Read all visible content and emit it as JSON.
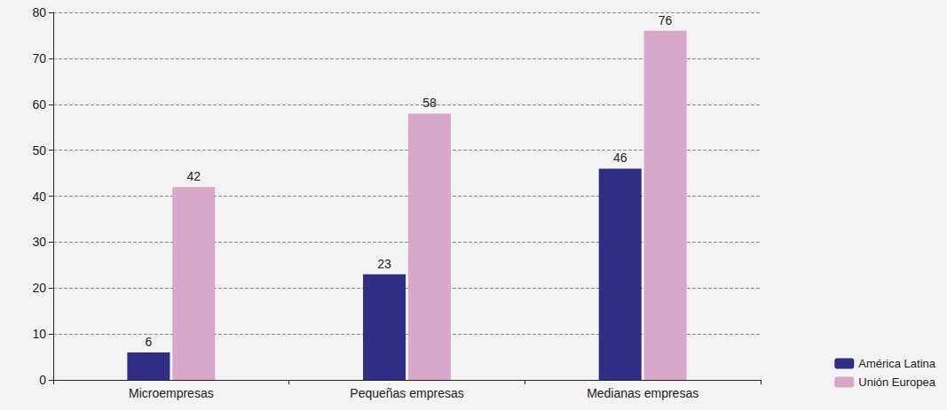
{
  "chart_data": {
    "type": "bar",
    "categories": [
      "Microempresas",
      "Pequeñas empresas",
      "Medianas empresas"
    ],
    "series": [
      {
        "name": "América Latina",
        "color": "#2f2d84",
        "values": [
          6,
          23,
          46
        ]
      },
      {
        "name": "Unión Europea",
        "color": "#d8a8ca",
        "values": [
          42,
          58,
          76
        ]
      }
    ],
    "ylim": [
      0,
      80
    ],
    "yticks": [
      0,
      10,
      20,
      30,
      40,
      50,
      60,
      70,
      80
    ],
    "grid": true,
    "legend": "lower right",
    "data_labels": true
  }
}
